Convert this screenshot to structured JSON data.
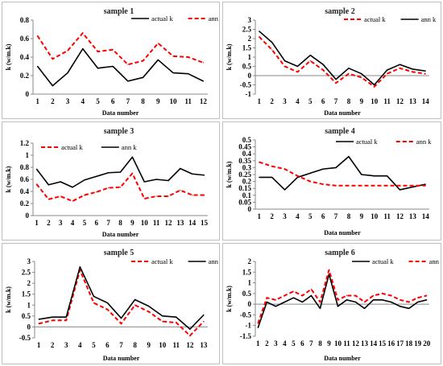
{
  "chart_data": [
    {
      "type": "line",
      "title": "sample 1",
      "xlabel": "Data number",
      "ylabel": "k (w/m.k)",
      "x": [
        1,
        2,
        3,
        4,
        5,
        6,
        7,
        8,
        9,
        10,
        11,
        12
      ],
      "ylim": [
        0,
        0.8
      ],
      "yticks": [
        "0",
        "0.2",
        "0.4",
        "0.6",
        "0.8"
      ],
      "legend": "top-right",
      "series": [
        {
          "name": "actual k",
          "style": "solid",
          "color": "#000000",
          "values": [
            0.3,
            0.09,
            0.23,
            0.49,
            0.28,
            0.3,
            0.14,
            0.18,
            0.37,
            0.23,
            0.22,
            0.14
          ]
        },
        {
          "name": "ann k",
          "style": "dashed",
          "color": "#ff0000",
          "values": [
            0.63,
            0.38,
            0.47,
            0.66,
            0.46,
            0.48,
            0.32,
            0.36,
            0.55,
            0.41,
            0.4,
            0.34
          ]
        }
      ]
    },
    {
      "type": "line",
      "title": "sample 2",
      "xlabel": "Data number",
      "ylabel": "k (w/m.k)",
      "x": [
        1,
        2,
        3,
        4,
        5,
        6,
        7,
        8,
        9,
        10,
        11,
        12,
        13,
        14
      ],
      "ylim": [
        -1,
        3
      ],
      "yticks": [
        "-1",
        "-0.5",
        "0",
        "0.5",
        "1",
        "1.5",
        "2",
        "2.5",
        "3"
      ],
      "legend": "top-right",
      "series": [
        {
          "name": "actual k",
          "style": "dashed",
          "color": "#ff0000",
          "values": [
            2.1,
            1.4,
            0.5,
            0.2,
            0.8,
            0.3,
            -0.4,
            0.1,
            -0.1,
            -0.6,
            0.1,
            0.4,
            0.2,
            0.1
          ]
        },
        {
          "name": "ann k",
          "style": "solid",
          "color": "#000000",
          "values": [
            2.4,
            1.8,
            0.8,
            0.5,
            1.1,
            0.6,
            -0.2,
            0.4,
            0.1,
            -0.5,
            0.3,
            0.6,
            0.35,
            0.25
          ]
        }
      ]
    },
    {
      "type": "line",
      "title": "sample 3",
      "xlabel": "Data number",
      "ylabel": "k (w/m.k)",
      "x": [
        1,
        2,
        3,
        4,
        5,
        6,
        7,
        8,
        9,
        10,
        11,
        12,
        13,
        14,
        15
      ],
      "ylim": [
        0,
        1.2
      ],
      "yticks": [
        "0",
        "0.2",
        "0.4",
        "0.6",
        "0.8",
        "1",
        "1.2"
      ],
      "legend": "top",
      "series": [
        {
          "name": "actual  k",
          "style": "dashed",
          "color": "#ff0000",
          "values": [
            0.52,
            0.27,
            0.32,
            0.24,
            0.34,
            0.39,
            0.46,
            0.47,
            0.7,
            0.28,
            0.32,
            0.32,
            0.42,
            0.34,
            0.34
          ]
        },
        {
          "name": "ann k",
          "style": "solid",
          "color": "#000000",
          "values": [
            0.77,
            0.51,
            0.56,
            0.47,
            0.59,
            0.65,
            0.71,
            0.72,
            0.97,
            0.56,
            0.6,
            0.58,
            0.78,
            0.69,
            0.67
          ]
        }
      ]
    },
    {
      "type": "line",
      "title": "sample 4",
      "xlabel": "Data number",
      "ylabel": "k (w/m.k)",
      "x": [
        1,
        2,
        3,
        4,
        5,
        6,
        7,
        8,
        9,
        10,
        11,
        12,
        13,
        14
      ],
      "ylim": [
        0,
        0.5
      ],
      "yticks": [
        "0",
        "0.05",
        "0.1",
        "0.15",
        "0.2",
        "0.25",
        "0.3",
        "0.35",
        "0.4",
        "0.45",
        "0.5"
      ],
      "legend": "top-right",
      "series": [
        {
          "name": "actual  k",
          "style": "solid",
          "color": "#000000",
          "values": [
            0.23,
            0.23,
            0.14,
            0.23,
            0.26,
            0.29,
            0.3,
            0.38,
            0.25,
            0.24,
            0.24,
            0.14,
            0.16,
            0.18
          ]
        },
        {
          "name": "ann k",
          "style": "dashed",
          "color": "#ff0000",
          "values": [
            0.34,
            0.31,
            0.29,
            0.24,
            0.2,
            0.18,
            0.17,
            0.17,
            0.17,
            0.17,
            0.17,
            0.17,
            0.17,
            0.17
          ]
        }
      ]
    },
    {
      "type": "line",
      "title": "sample 5",
      "xlabel": "Data number",
      "ylabel": "k (w/m.k)",
      "x": [
        1,
        2,
        3,
        4,
        5,
        6,
        7,
        8,
        9,
        10,
        11,
        12,
        13
      ],
      "ylim": [
        -0.5,
        3
      ],
      "yticks": [
        "-0.5",
        "0",
        "0.5",
        "1",
        "1.5",
        "2",
        "2.5",
        "3"
      ],
      "legend": "top-right",
      "series": [
        {
          "name": "actual k",
          "style": "dashed",
          "color": "#ff0000",
          "values": [
            0.15,
            0.3,
            0.3,
            2.6,
            1.1,
            0.8,
            0.15,
            1.0,
            0.7,
            0.25,
            0.2,
            -0.4,
            0.25
          ]
        },
        {
          "name": "ann k",
          "style": "solid",
          "color": "#000000",
          "values": [
            0.35,
            0.45,
            0.45,
            2.75,
            1.4,
            1.1,
            0.4,
            1.25,
            0.95,
            0.5,
            0.45,
            -0.1,
            0.55
          ]
        }
      ]
    },
    {
      "type": "line",
      "title": "sample 6",
      "xlabel": "Data number",
      "ylabel": "k (w/m.k)",
      "x": [
        1,
        2,
        3,
        4,
        5,
        6,
        7,
        8,
        9,
        10,
        11,
        12,
        13,
        14,
        15,
        16,
        17,
        18,
        19,
        20
      ],
      "ylim": [
        -1.5,
        2
      ],
      "yticks": [
        "-1.5",
        "-1",
        "-0.5",
        "0",
        "0.5",
        "1",
        "1.5",
        "2"
      ],
      "legend": "top-right",
      "series": [
        {
          "name": "actual k",
          "style": "solid",
          "color": "#000000",
          "values": [
            -1.1,
            0.1,
            -0.1,
            0.1,
            0.3,
            0.1,
            0.4,
            -0.2,
            1.4,
            -0.1,
            0.2,
            0.1,
            -0.2,
            0.2,
            0.2,
            0.1,
            -0.1,
            -0.2,
            0.1,
            0.2
          ]
        },
        {
          "name": "ann k",
          "style": "dashed",
          "color": "#ff0000",
          "values": [
            -0.9,
            0.3,
            0.2,
            0.4,
            0.6,
            0.4,
            0.7,
            0.1,
            1.6,
            0.2,
            0.4,
            0.4,
            0.1,
            0.4,
            0.5,
            0.4,
            0.2,
            0.1,
            0.3,
            0.4
          ]
        }
      ]
    }
  ]
}
